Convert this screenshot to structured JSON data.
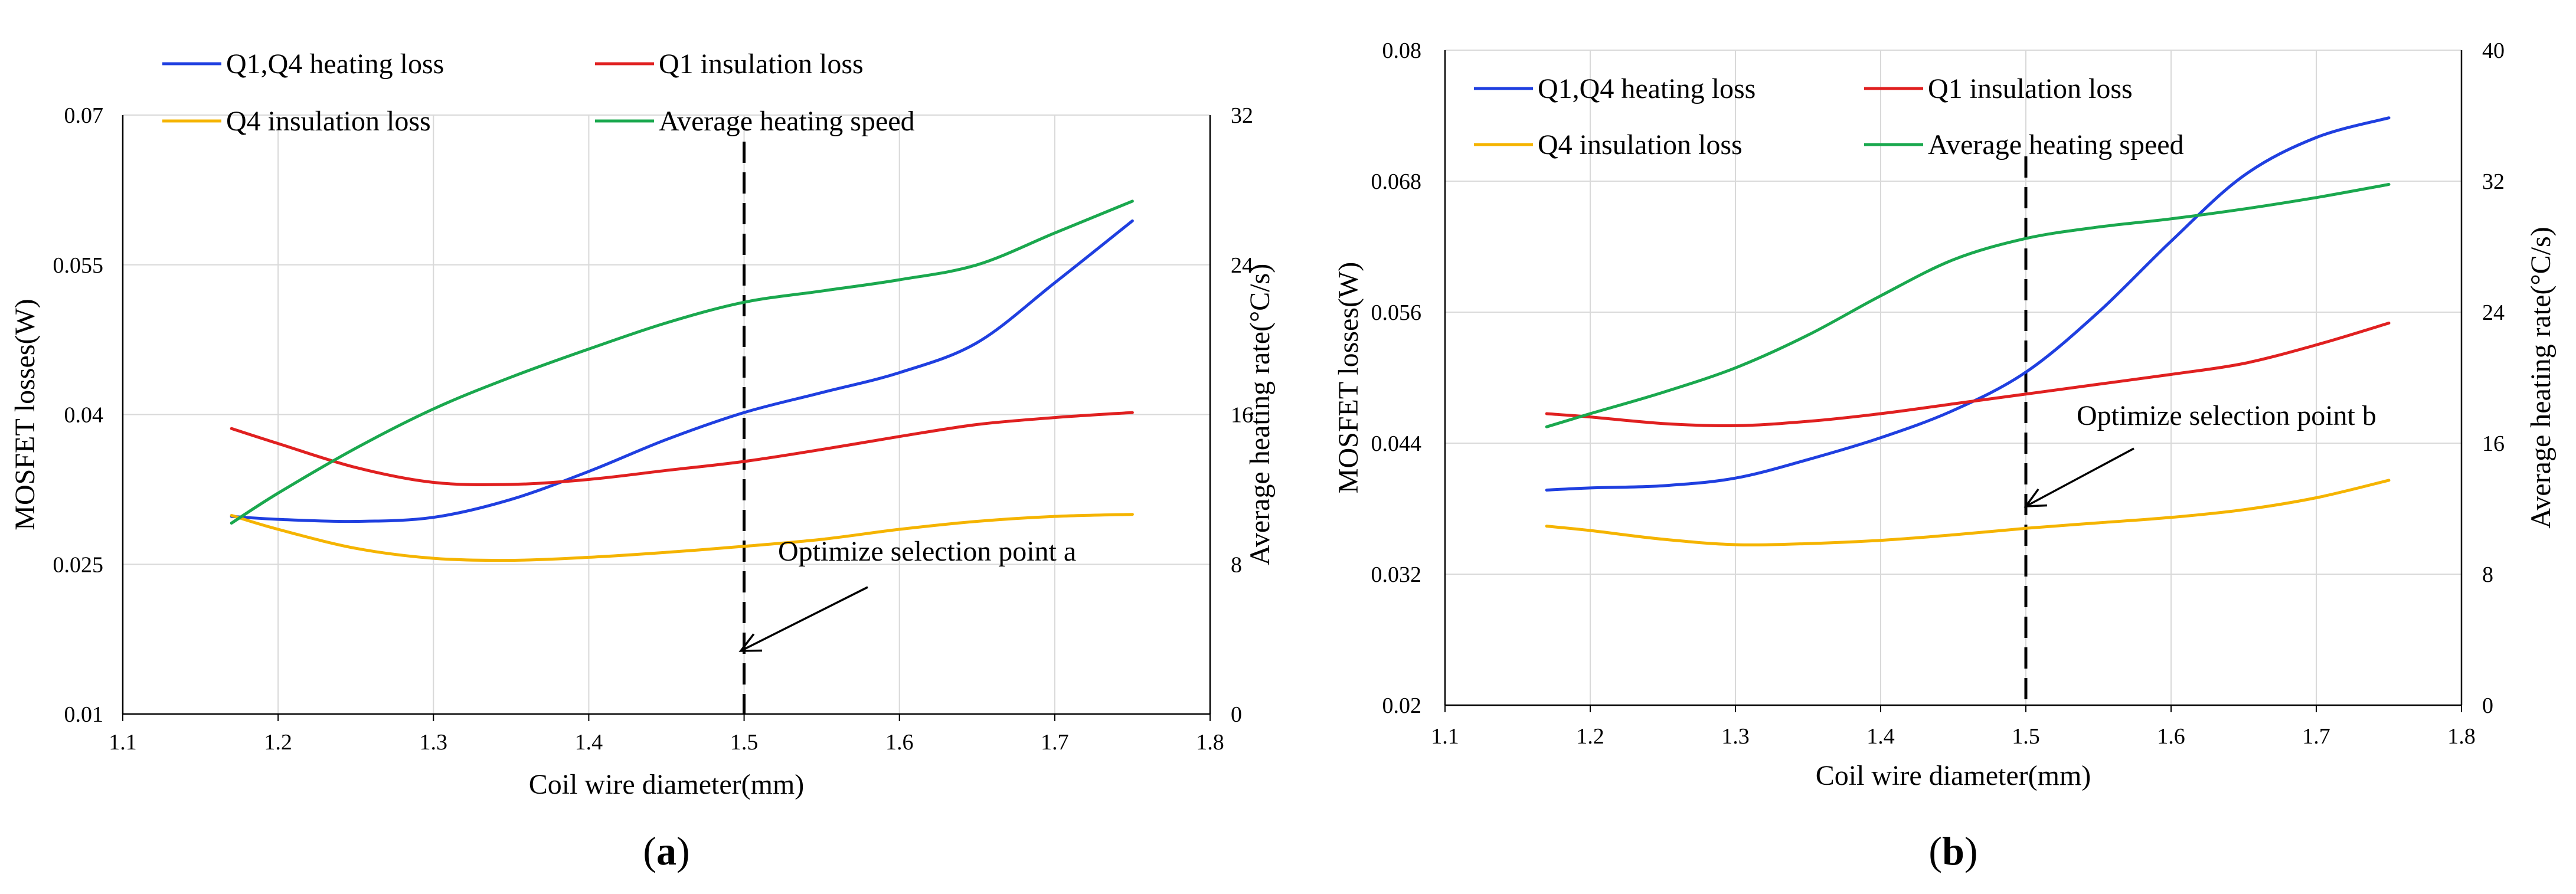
{
  "chart_data": [
    {
      "type": "line",
      "panel_label": "a",
      "xlabel": "Coil wire diameter(mm)",
      "ylabel": "MOSFET losses(W)",
      "y2label": "Average heating rate(°C/s)",
      "xlim": [
        1.1,
        1.8
      ],
      "ylim": [
        0.01,
        0.07
      ],
      "y2lim": [
        0,
        32
      ],
      "x_ticks": [
        "1.1",
        "1.2",
        "1.3",
        "1.4",
        "1.5",
        "1.6",
        "1.7",
        "1.8"
      ],
      "y_ticks": [
        "0.01",
        "0.025",
        "0.04",
        "0.055",
        "0.07"
      ],
      "y2_ticks": [
        "0",
        "8",
        "16",
        "24",
        "32"
      ],
      "grid": true,
      "legend": [
        "Q1,Q4 heating loss",
        "Q1 insulation loss",
        "Q4 insulation loss",
        "Average heating speed"
      ],
      "series": [
        {
          "name": "Q1,Q4 heating loss",
          "axis": "left",
          "color": "#1f3fe0",
          "x": [
            1.17,
            1.2,
            1.25,
            1.3,
            1.35,
            1.4,
            1.45,
            1.5,
            1.55,
            1.6,
            1.65,
            1.7,
            1.75
          ],
          "values": [
            0.0298,
            0.0295,
            0.0293,
            0.0297,
            0.0315,
            0.0343,
            0.0375,
            0.0402,
            0.0422,
            0.0442,
            0.0472,
            0.0532,
            0.0594
          ]
        },
        {
          "name": "Q1 insulation loss",
          "axis": "left",
          "color": "#e02020",
          "x": [
            1.17,
            1.2,
            1.25,
            1.3,
            1.35,
            1.4,
            1.45,
            1.5,
            1.55,
            1.6,
            1.65,
            1.7,
            1.75
          ],
          "values": [
            0.0386,
            0.0371,
            0.0347,
            0.0332,
            0.033,
            0.0335,
            0.0344,
            0.0353,
            0.0365,
            0.0378,
            0.039,
            0.0397,
            0.0402
          ]
        },
        {
          "name": "Q4 insulation loss",
          "axis": "left",
          "color": "#f5b400",
          "x": [
            1.17,
            1.2,
            1.25,
            1.3,
            1.35,
            1.4,
            1.45,
            1.5,
            1.55,
            1.6,
            1.65,
            1.7,
            1.75
          ],
          "values": [
            0.0299,
            0.0285,
            0.0266,
            0.0256,
            0.0254,
            0.0257,
            0.0262,
            0.0268,
            0.0275,
            0.0285,
            0.0293,
            0.0298,
            0.03
          ]
        },
        {
          "name": "Average heating speed",
          "axis": "right",
          "color": "#1aa84e",
          "x": [
            1.17,
            1.2,
            1.25,
            1.3,
            1.35,
            1.4,
            1.45,
            1.5,
            1.55,
            1.6,
            1.65,
            1.7,
            1.75
          ],
          "values": [
            10.2,
            11.8,
            14.2,
            16.3,
            18.0,
            19.5,
            20.9,
            22.0,
            22.6,
            23.2,
            24.0,
            25.7,
            27.4
          ]
        }
      ],
      "vline_x": 1.5,
      "annotation": {
        "text": "Optimize selection point a",
        "x": 1.5,
        "y": 0.0155
      }
    },
    {
      "type": "line",
      "panel_label": "b",
      "xlabel": "Coil wire diameter(mm)",
      "ylabel": "MOSFET losses(W)",
      "y2label": "Average heating rate(°C/s)",
      "xlim": [
        1.1,
        1.8
      ],
      "ylim": [
        0.02,
        0.08
      ],
      "y2lim": [
        0,
        40
      ],
      "x_ticks": [
        "1.1",
        "1.2",
        "1.3",
        "1.4",
        "1.5",
        "1.6",
        "1.7",
        "1.8"
      ],
      "y_ticks": [
        "0.02",
        "0.032",
        "0.044",
        "0.056",
        "0.068",
        "0.08"
      ],
      "y2_ticks": [
        "0",
        "8",
        "16",
        "24",
        "32",
        "40"
      ],
      "grid": true,
      "legend": [
        "Q1,Q4 heating loss",
        "Q1 insulation loss",
        "Q4 insulation loss",
        "Average heating speed"
      ],
      "series": [
        {
          "name": "Q1,Q4 heating loss",
          "axis": "left",
          "color": "#1f3fe0",
          "x": [
            1.17,
            1.2,
            1.25,
            1.3,
            1.35,
            1.4,
            1.45,
            1.5,
            1.55,
            1.6,
            1.65,
            1.7,
            1.75
          ],
          "values": [
            0.0397,
            0.0399,
            0.0401,
            0.0408,
            0.0425,
            0.0445,
            0.047,
            0.0505,
            0.056,
            0.0625,
            0.0685,
            0.072,
            0.0738
          ]
        },
        {
          "name": "Q1 insulation loss",
          "axis": "left",
          "color": "#e02020",
          "x": [
            1.17,
            1.2,
            1.25,
            1.3,
            1.35,
            1.4,
            1.45,
            1.5,
            1.55,
            1.6,
            1.65,
            1.7,
            1.75
          ],
          "values": [
            0.0467,
            0.0464,
            0.0458,
            0.0456,
            0.046,
            0.0467,
            0.0476,
            0.0485,
            0.0494,
            0.0503,
            0.0513,
            0.053,
            0.055
          ]
        },
        {
          "name": "Q4 insulation loss",
          "axis": "left",
          "color": "#f5b400",
          "x": [
            1.17,
            1.2,
            1.25,
            1.3,
            1.35,
            1.4,
            1.45,
            1.5,
            1.55,
            1.6,
            1.65,
            1.7,
            1.75
          ],
          "values": [
            0.0364,
            0.036,
            0.0352,
            0.0347,
            0.0348,
            0.0351,
            0.0356,
            0.0362,
            0.0367,
            0.0372,
            0.0379,
            0.039,
            0.0406
          ]
        },
        {
          "name": "Average heating speed",
          "axis": "right",
          "color": "#1aa84e",
          "x": [
            1.17,
            1.2,
            1.25,
            1.3,
            1.35,
            1.4,
            1.45,
            1.5,
            1.55,
            1.6,
            1.65,
            1.7,
            1.75
          ],
          "values": [
            17.0,
            17.8,
            19.1,
            20.6,
            22.6,
            25.0,
            27.2,
            28.5,
            29.2,
            29.7,
            30.3,
            31.0,
            31.8
          ]
        }
      ],
      "vline_x": 1.5,
      "annotation": {
        "text": "Optimize selection point b",
        "x": 1.5,
        "y": 0.0385
      }
    }
  ]
}
